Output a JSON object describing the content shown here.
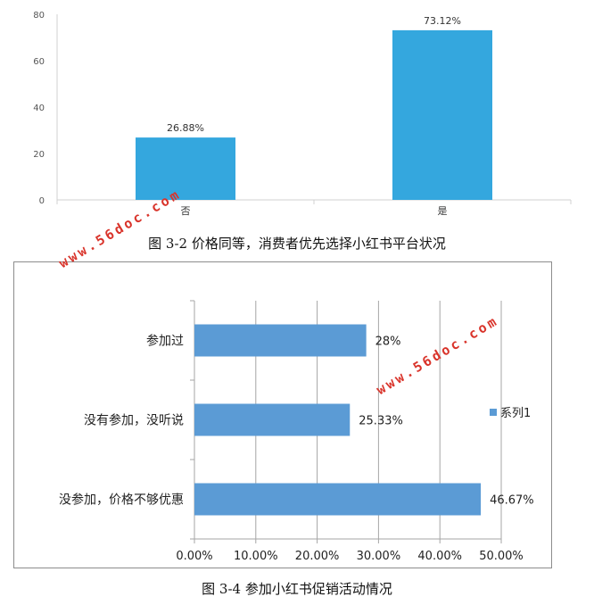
{
  "chart_data": [
    {
      "type": "bar",
      "categories": [
        "否",
        "是"
      ],
      "values": [
        26.88,
        73.12
      ],
      "data_labels": [
        "26.88%",
        "73.12%"
      ],
      "ylim": [
        0,
        80
      ],
      "yticks": [
        "0",
        "20",
        "40",
        "60",
        "80"
      ],
      "grid": false,
      "bar_color": "#34a7de"
    },
    {
      "type": "bar",
      "orientation": "horizontal",
      "categories": [
        "参加过",
        "没有参加，没听说",
        "没参加，价格不够优惠"
      ],
      "series": [
        {
          "name": "系列1",
          "values": [
            28,
            25.33,
            46.67
          ]
        }
      ],
      "data_labels": [
        "28%",
        "25.33%",
        "46.67%"
      ],
      "xlim": [
        0,
        50
      ],
      "xticks": [
        "0.00%",
        "10.00%",
        "20.00%",
        "30.00%",
        "40.00%",
        "50.00%"
      ],
      "grid": true,
      "legend": "right",
      "bar_color": "#5b9bd5"
    }
  ],
  "captions": {
    "fig1": "图 3-2  价格同等，消费者优先选择小红书平台状况",
    "fig2": "图 3-4  参加小红书促销活动情况"
  },
  "watermark": "www.56doc.com"
}
